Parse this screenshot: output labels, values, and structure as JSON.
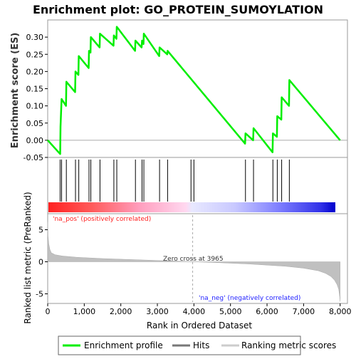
{
  "chart_data": [
    {
      "type": "line",
      "panel": "enrichment",
      "title": "Enrichment plot: GO_PROTEIN_SUMOYLATION",
      "ylabel": "Enrichment score (ES)",
      "ylim": [
        -0.05,
        0.35
      ],
      "yticks": [
        "-0.05",
        "0.00",
        "0.05",
        "0.10",
        "0.15",
        "0.20",
        "0.25",
        "0.30"
      ],
      "ytick_values": [
        -0.05,
        0.0,
        0.05,
        0.1,
        0.15,
        0.2,
        0.25,
        0.3
      ],
      "xlim": [
        0,
        8200
      ],
      "series": [
        {
          "name": "Enrichment profile",
          "color": "#00ee00",
          "x": [
            0,
            340,
            350,
            380,
            500,
            510,
            750,
            760,
            840,
            850,
            1120,
            1130,
            1170,
            1180,
            1420,
            1430,
            1800,
            1810,
            1880,
            1890,
            2390,
            2400,
            2570,
            2580,
            2620,
            2630,
            3050,
            3060,
            3270,
            3280,
            5400,
            5410,
            5620,
            5630,
            6150,
            6160,
            6270,
            6280,
            6390,
            6400,
            6600,
            6610,
            8000
          ],
          "y": [
            0.0,
            -0.04,
            0.04,
            0.12,
            0.1,
            0.17,
            0.14,
            0.2,
            0.19,
            0.245,
            0.21,
            0.26,
            0.255,
            0.3,
            0.27,
            0.31,
            0.275,
            0.305,
            0.295,
            0.33,
            0.26,
            0.29,
            0.27,
            0.29,
            0.28,
            0.31,
            0.245,
            0.27,
            0.25,
            0.26,
            -0.01,
            0.02,
            0.0,
            0.035,
            -0.035,
            0.02,
            0.01,
            0.07,
            0.06,
            0.125,
            0.1,
            0.175,
            0.0
          ]
        }
      ]
    },
    {
      "type": "scatter",
      "panel": "hits",
      "series": [
        {
          "name": "Hits",
          "color": "#000000",
          "x": [
            340,
            380,
            510,
            760,
            850,
            1130,
            1180,
            1430,
            1810,
            1890,
            2400,
            2580,
            2630,
            3060,
            3280,
            3920,
            4000,
            5410,
            5630,
            6160,
            6280,
            6400,
            6610
          ]
        }
      ]
    },
    {
      "type": "area",
      "panel": "ranked-metric",
      "ylabel": "Ranked list metric (PreRanked)",
      "xlabel": "Rank in Ordered Dataset",
      "ylim": [
        -6.5,
        7.5
      ],
      "yticks": [
        "-5",
        "0",
        "5"
      ],
      "ytick_values": [
        -5,
        0,
        5
      ],
      "xlim": [
        0,
        8200
      ],
      "xticks": [
        "0",
        "1,000",
        "2,000",
        "3,000",
        "4,000",
        "5,000",
        "6,000",
        "7,000",
        "8,000"
      ],
      "xtick_values": [
        0,
        1000,
        2000,
        3000,
        4000,
        5000,
        6000,
        7000,
        8000
      ],
      "zero_cross": 3965,
      "series": [
        {
          "name": "Ranking metric scores",
          "color": "#c0c0c0",
          "x": [
            0,
            10,
            30,
            60,
            100,
            200,
            400,
            800,
            1500,
            2500,
            3500,
            3965,
            4500,
            5500,
            6500,
            7000,
            7400,
            7600,
            7750,
            7850,
            7920,
            7960,
            7990,
            8000
          ],
          "y": [
            6.2,
            4.0,
            2.8,
            1.9,
            1.4,
            1.1,
            0.9,
            0.7,
            0.5,
            0.3,
            0.1,
            0.0,
            -0.1,
            -0.35,
            -0.7,
            -1.0,
            -1.4,
            -1.8,
            -2.3,
            -2.9,
            -3.6,
            -4.3,
            -5.5,
            -6.2
          ]
        }
      ]
    }
  ],
  "annotations": {
    "pos_label": "'na_pos' (positively correlated)",
    "neg_label": "'na_neg' (negatively correlated)",
    "zero_cross_label": "Zero cross at 3965"
  },
  "legend": {
    "placement": "bottom",
    "items": [
      {
        "label": "Enrichment profile",
        "color": "#00ee00"
      },
      {
        "label": "Hits",
        "color": "#777777"
      },
      {
        "label": "Ranking metric scores",
        "color": "#cccccc"
      }
    ]
  },
  "colors": {
    "pos": "#ff0000",
    "neg": "#0000ff",
    "pos_text": "#ff2020",
    "neg_text": "#2020ff"
  }
}
